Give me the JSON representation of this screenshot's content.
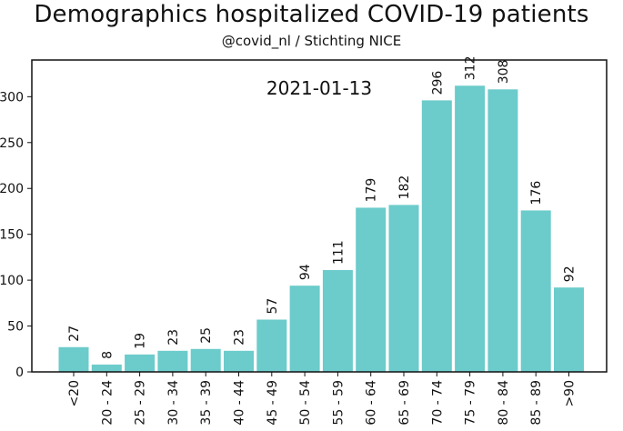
{
  "chart_data": {
    "type": "bar",
    "title": "Demographics hospitalized COVID-19 patients",
    "subtitle": "@covid_nl / Stichting NICE",
    "annotation": "2021-01-13",
    "categories": [
      "<20",
      "20 - 24",
      "25 - 29",
      "30 - 34",
      "35 - 39",
      "40 - 44",
      "45 - 49",
      "50 - 54",
      "55 - 59",
      "60 - 64",
      "65 - 69",
      "70 - 74",
      "75 - 79",
      "80 - 84",
      "85 - 89",
      ">90"
    ],
    "values": [
      27,
      8,
      19,
      23,
      25,
      23,
      57,
      94,
      111,
      179,
      182,
      296,
      312,
      308,
      176,
      92
    ],
    "yticks": [
      0,
      50,
      100,
      150,
      200,
      250,
      300
    ],
    "ylim": [
      0,
      340
    ],
    "bar_color": "#6ccbcb",
    "grid": false,
    "legend": "none"
  }
}
